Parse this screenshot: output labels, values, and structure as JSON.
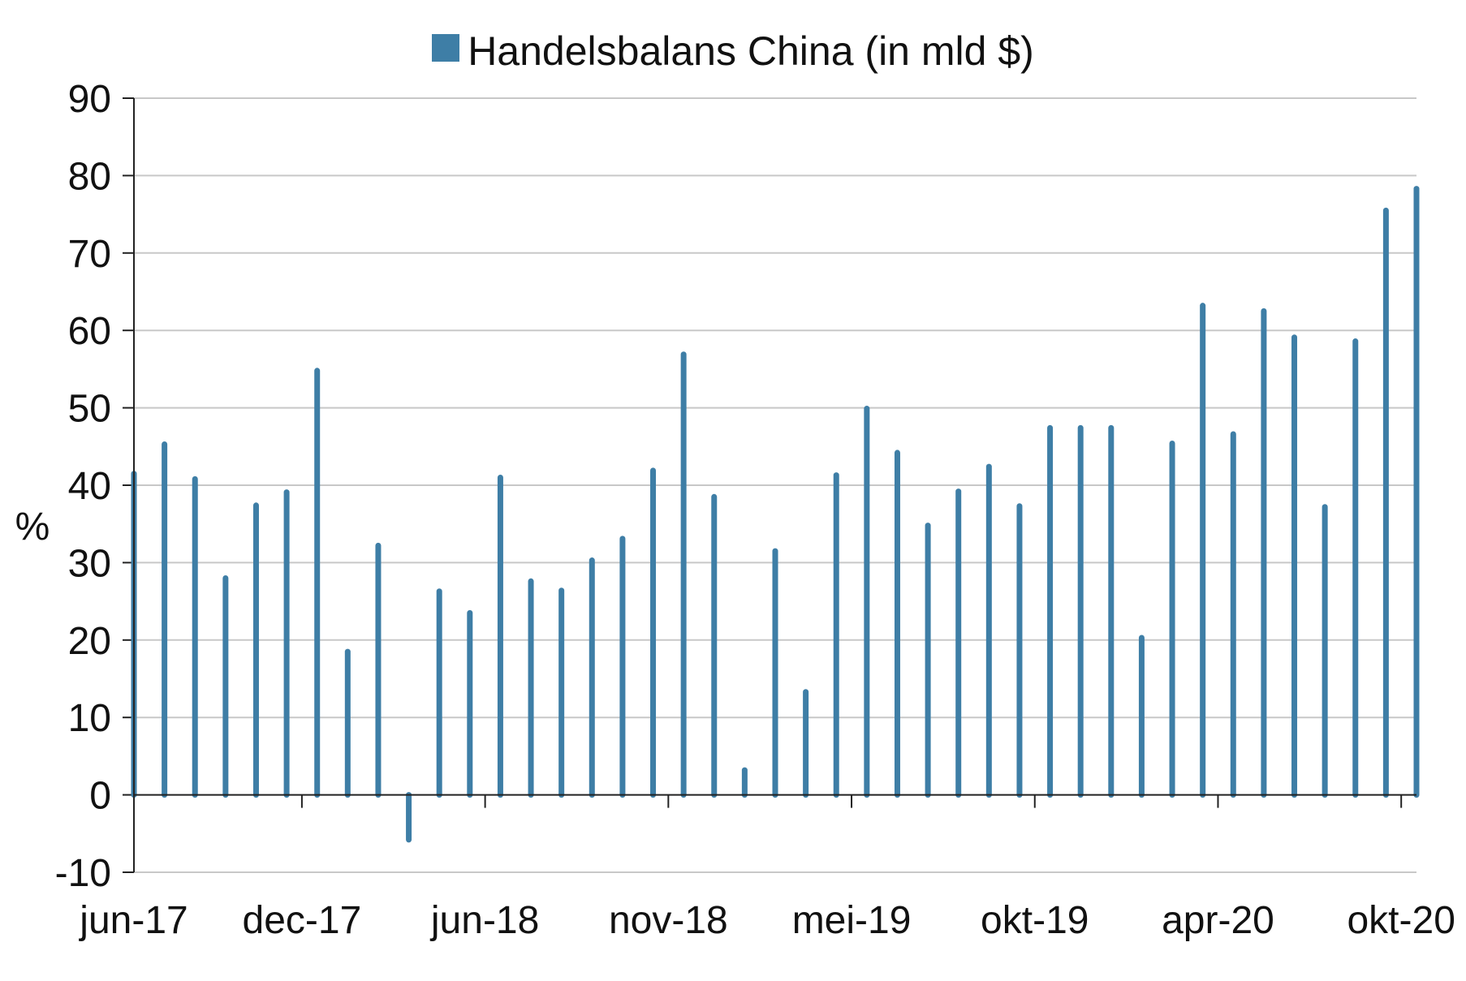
{
  "chart_data": {
    "type": "bar",
    "legend": "Handelsbalans China (in mld $)",
    "ylabel": "%",
    "ylim": [
      -10,
      90
    ],
    "yticks": [
      -10,
      0,
      10,
      20,
      30,
      40,
      50,
      60,
      70,
      80,
      90
    ],
    "grid": true,
    "legend_position": "top-center",
    "color": "#3e7ea6",
    "x_tick_labels": [
      {
        "label": "jun-17",
        "index": 0
      },
      {
        "label": "dec-17",
        "index": 6
      },
      {
        "label": "jun-18",
        "index": 12
      },
      {
        "label": "nov-18",
        "index": 18
      },
      {
        "label": "mei-19",
        "index": 24
      },
      {
        "label": "okt-19",
        "index": 30
      },
      {
        "label": "apr-20",
        "index": 36
      },
      {
        "label": "okt-20",
        "index": 42
      }
    ],
    "values": [
      41.5,
      45.3,
      40.8,
      28.0,
      37.4,
      39.1,
      54.8,
      18.5,
      32.2,
      -5.8,
      26.3,
      23.5,
      41.0,
      27.6,
      26.4,
      30.3,
      33.1,
      41.9,
      56.9,
      38.5,
      3.2,
      31.5,
      13.3,
      41.3,
      49.9,
      44.2,
      34.8,
      39.2,
      42.4,
      37.3,
      47.4,
      47.4,
      47.4,
      20.3,
      45.4,
      63.2,
      46.6,
      62.5,
      59.1,
      37.2,
      58.6,
      75.5,
      78.3
    ]
  }
}
